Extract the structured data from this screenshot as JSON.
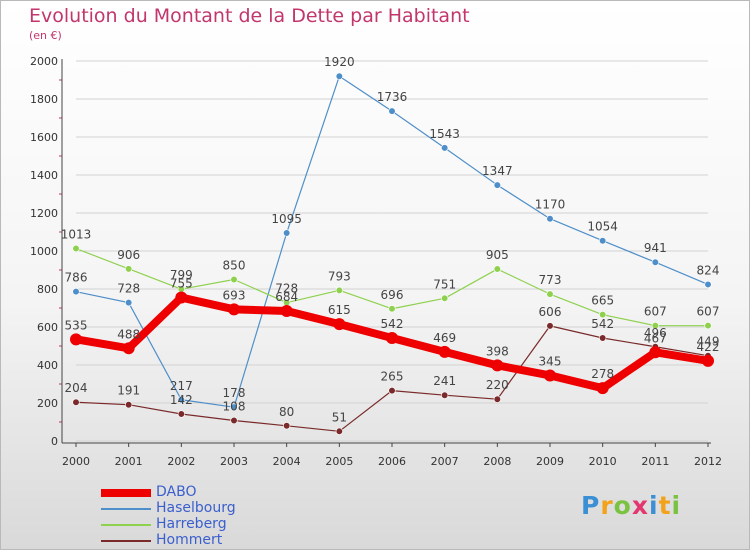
{
  "chart_data": {
    "type": "line",
    "title": "Evolution du Montant de la Dette par Habitant",
    "subtitle": "(en €)",
    "xlabel": "",
    "ylabel": "",
    "x": [
      "2000",
      "2001",
      "2002",
      "2003",
      "2004",
      "2005",
      "2006",
      "2007",
      "2008",
      "2009",
      "2010",
      "2011",
      "2012"
    ],
    "y_ticks": [
      "0",
      "200",
      "400",
      "600",
      "800",
      "1000",
      "1200",
      "1400",
      "1600",
      "1800",
      "2000"
    ],
    "ylim": [
      0,
      2000
    ],
    "grid": true,
    "legend_position": "bottom-left",
    "series": [
      {
        "name": "DABO",
        "color": "#ee0000",
        "values": [
          535,
          488,
          755,
          693,
          684,
          615,
          542,
          469,
          398,
          345,
          278,
          467,
          422
        ]
      },
      {
        "name": "Haselbourg",
        "color": "#4f8fc9",
        "values": [
          786,
          728,
          217,
          178,
          1095,
          1920,
          1736,
          1543,
          1347,
          1170,
          1054,
          941,
          824
        ]
      },
      {
        "name": "Harreberg",
        "color": "#8fd14f",
        "values": [
          1013,
          906,
          799,
          850,
          728,
          793,
          696,
          751,
          905,
          773,
          665,
          607,
          607
        ]
      },
      {
        "name": "Hommert",
        "color": "#7a2a2a",
        "values": [
          204,
          191,
          142,
          108,
          80,
          51,
          265,
          241,
          220,
          606,
          542,
          496,
          449
        ]
      }
    ]
  },
  "logo": {
    "letters": [
      "P",
      "r",
      "o",
      "x",
      "i",
      "t",
      "i"
    ],
    "colors": [
      "#3b8fd4",
      "#f3a31b",
      "#7cc242",
      "#e2376f",
      "#3b8fd4",
      "#f3a31b",
      "#7cc242"
    ]
  }
}
